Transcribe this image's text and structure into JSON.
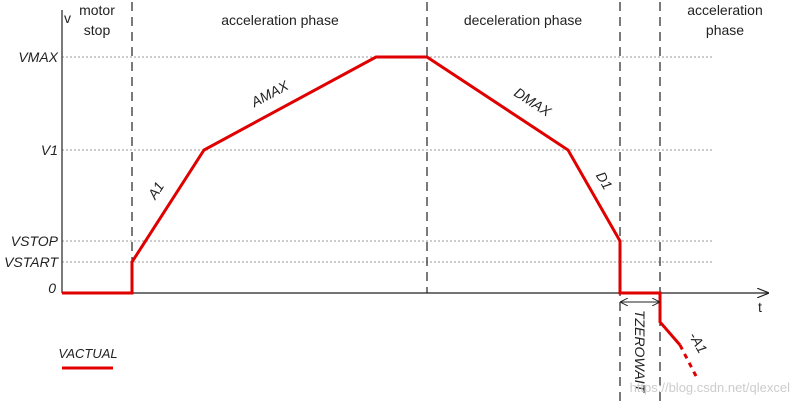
{
  "axes": {
    "y_label": "v",
    "x_label": "t"
  },
  "phases": [
    {
      "lines": [
        "motor",
        "stop"
      ]
    },
    {
      "lines": [
        "acceleration phase"
      ]
    },
    {
      "lines": [
        "deceleration phase"
      ]
    },
    {
      "lines": [
        "acceleration",
        "phase"
      ]
    }
  ],
  "levels": [
    "VMAX",
    "V1",
    "VSTOP",
    "VSTART",
    "0"
  ],
  "ramps": [
    "A1",
    "AMAX",
    "DMAX",
    "D1",
    "-A1"
  ],
  "wait_label": "TZEROWAIT",
  "legend": "VACTUAL",
  "watermark": "https://blog.csdn.net/qlexcel"
}
